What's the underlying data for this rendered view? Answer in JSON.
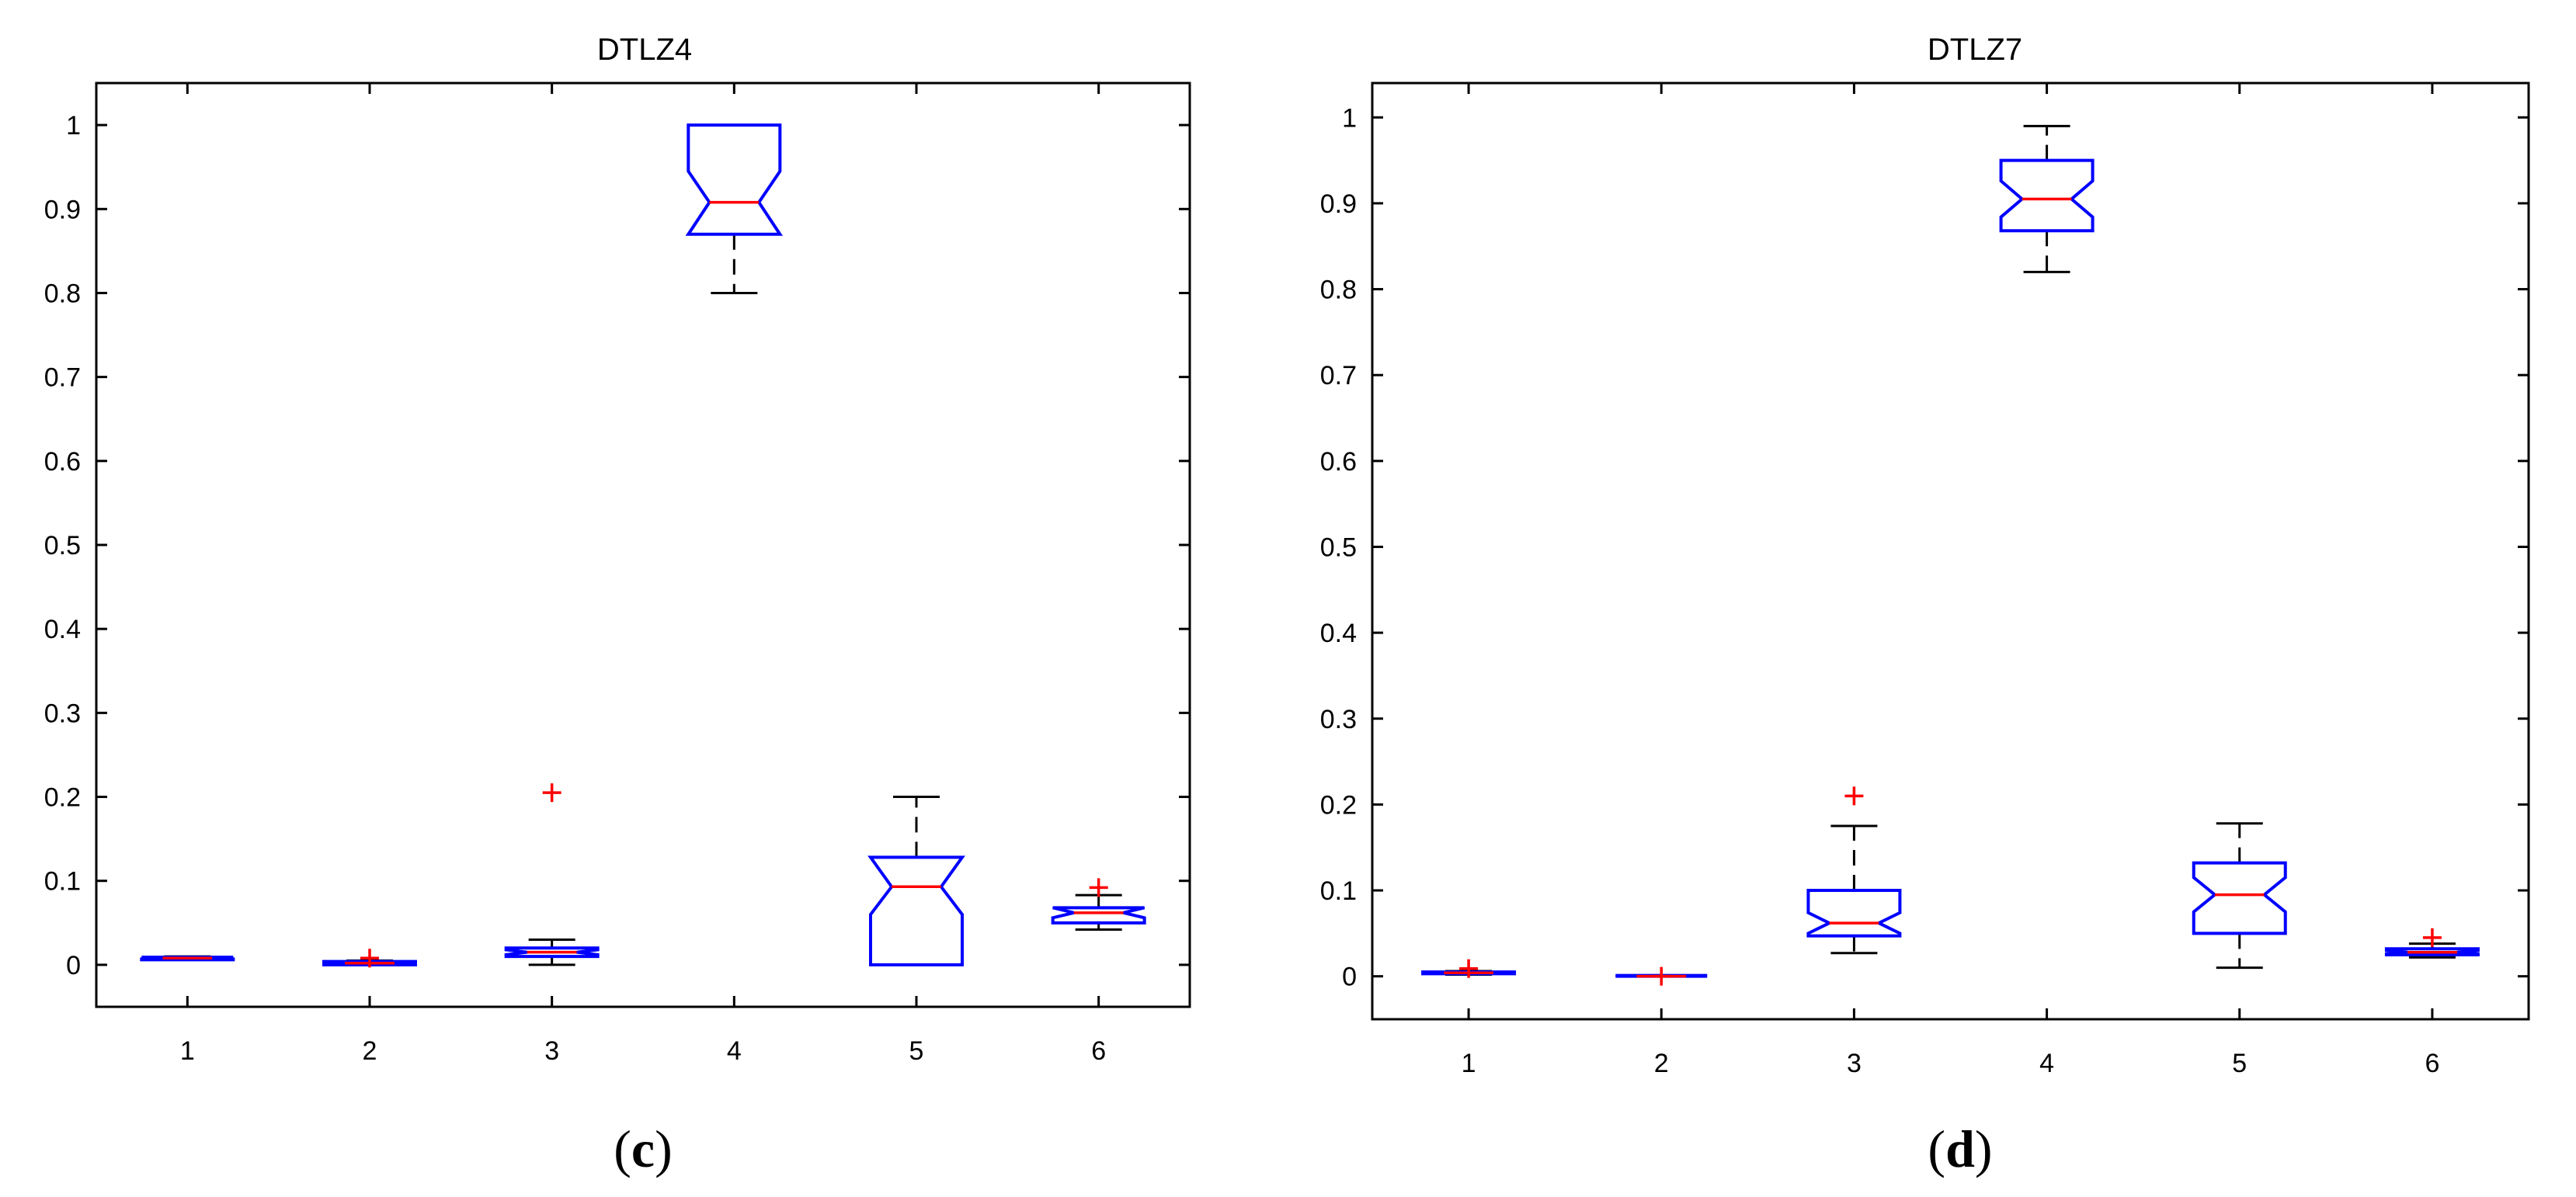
{
  "chart_data": [
    {
      "type": "box",
      "title": "DTLZ4",
      "panel_label": {
        "open": "(",
        "letter": "c",
        "close": ")"
      },
      "categories": [
        "1",
        "2",
        "3",
        "4",
        "5",
        "6"
      ],
      "ylim": [
        -0.05,
        1.05
      ],
      "yticks": [
        0,
        0.1,
        0.2,
        0.3,
        0.4,
        0.5,
        0.6,
        0.7,
        0.8,
        0.9,
        1
      ],
      "ytick_labels": [
        "0",
        "0.1",
        "0.2",
        "0.3",
        "0.4",
        "0.5",
        "0.6",
        "0.7",
        "0.8",
        "0.9",
        "1"
      ],
      "notched": true,
      "grid": false,
      "boxes": [
        {
          "category": "1",
          "whisker_low": 0.006,
          "q1": 0.006,
          "median": 0.008,
          "q3": 0.009,
          "whisker_high": 0.01,
          "notch_low": 0.007,
          "notch_high": 0.009,
          "outliers": []
        },
        {
          "category": "2",
          "whisker_low": 0.0,
          "q1": 0.0,
          "median": 0.002,
          "q3": 0.004,
          "whisker_high": 0.005,
          "notch_low": 0.001,
          "notch_high": 0.003,
          "outliers": [
            0.008
          ]
        },
        {
          "category": "3",
          "whisker_low": 0.0,
          "q1": 0.01,
          "median": 0.015,
          "q3": 0.02,
          "whisker_high": 0.03,
          "notch_low": 0.012,
          "notch_high": 0.018,
          "outliers": [
            0.205
          ]
        },
        {
          "category": "4",
          "whisker_low": 0.8,
          "q1": 0.87,
          "median": 0.908,
          "q3": 1.0,
          "whisker_high": 1.0,
          "notch_low": 0.87,
          "notch_high": 0.945,
          "outliers": []
        },
        {
          "category": "5",
          "whisker_low": 0.0,
          "q1": 0.0,
          "median": 0.093,
          "q3": 0.128,
          "whisker_high": 0.2,
          "notch_low": 0.06,
          "notch_high": 0.128,
          "outliers": []
        },
        {
          "category": "6",
          "whisker_low": 0.042,
          "q1": 0.05,
          "median": 0.062,
          "q3": 0.068,
          "whisker_high": 0.083,
          "notch_low": 0.056,
          "notch_high": 0.068,
          "outliers": [
            0.092
          ]
        }
      ]
    },
    {
      "type": "box",
      "title": "DTLZ7",
      "panel_label": {
        "open": "(",
        "letter": "d",
        "close": ")"
      },
      "categories": [
        "1",
        "2",
        "3",
        "4",
        "5",
        "6"
      ],
      "ylim": [
        -0.05,
        1.04
      ],
      "yticks": [
        0,
        0.1,
        0.2,
        0.3,
        0.4,
        0.5,
        0.6,
        0.7,
        0.8,
        0.9,
        1
      ],
      "ytick_labels": [
        "0",
        "0.1",
        "0.2",
        "0.3",
        "0.4",
        "0.5",
        "0.6",
        "0.7",
        "0.8",
        "0.9",
        "1"
      ],
      "notched": true,
      "grid": false,
      "boxes": [
        {
          "category": "1",
          "whisker_low": 0.002,
          "q1": 0.003,
          "median": 0.004,
          "q3": 0.005,
          "whisker_high": 0.006,
          "notch_low": 0.0035,
          "notch_high": 0.0045,
          "outliers": [
            0.009
          ]
        },
        {
          "category": "2",
          "whisker_low": 0.0,
          "q1": 0.0,
          "median": 0.0,
          "q3": 0.001,
          "whisker_high": 0.001,
          "notch_low": 0.0,
          "notch_high": 0.001,
          "outliers": [
            0.0
          ]
        },
        {
          "category": "3",
          "whisker_low": 0.027,
          "q1": 0.047,
          "median": 0.062,
          "q3": 0.1,
          "whisker_high": 0.175,
          "notch_low": 0.05,
          "notch_high": 0.074,
          "outliers": [
            0.21
          ]
        },
        {
          "category": "4",
          "whisker_low": 0.82,
          "q1": 0.868,
          "median": 0.905,
          "q3": 0.95,
          "whisker_high": 0.99,
          "notch_low": 0.884,
          "notch_high": 0.926,
          "outliers": []
        },
        {
          "category": "5",
          "whisker_low": 0.01,
          "q1": 0.05,
          "median": 0.095,
          "q3": 0.132,
          "whisker_high": 0.178,
          "notch_low": 0.075,
          "notch_high": 0.115,
          "outliers": []
        },
        {
          "category": "6",
          "whisker_low": 0.022,
          "q1": 0.025,
          "median": 0.028,
          "q3": 0.032,
          "whisker_high": 0.038,
          "notch_low": 0.026,
          "notch_high": 0.03,
          "outliers": [
            0.045
          ]
        }
      ]
    }
  ],
  "colors": {
    "box": "#0000ff",
    "median": "#ff0000",
    "outlier": "#ff0000",
    "whisker": "#000000",
    "axes": "#000000",
    "background": "#ffffff"
  }
}
